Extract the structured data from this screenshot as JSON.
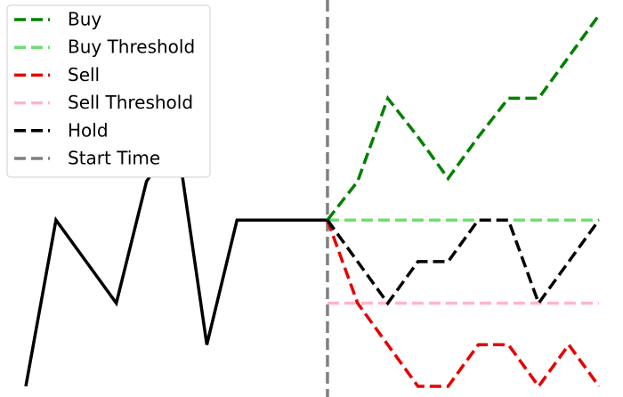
{
  "chart_data": {
    "type": "line",
    "grid": false,
    "legend_position": "top-left",
    "xlim": [
      -0.5,
      19.5
    ],
    "ylim": [
      -0.2,
      13.0
    ],
    "start_time": 10,
    "series": [
      {
        "name": "Hold",
        "role": "history",
        "color": "#000000",
        "style": "solid",
        "x": [
          0,
          1,
          2,
          3,
          4,
          5,
          6,
          7,
          8,
          9,
          10
        ],
        "y": [
          0.0,
          5.6,
          4.2,
          2.8,
          6.9,
          8.4,
          1.4,
          5.6,
          5.6,
          5.6,
          5.6
        ]
      },
      {
        "name": "Buy",
        "color": "#008000",
        "style": "dashed",
        "x": [
          10,
          11,
          12,
          13,
          14,
          15,
          16,
          17,
          18,
          19
        ],
        "y": [
          5.6,
          6.9,
          9.7,
          8.4,
          7.0,
          8.4,
          9.7,
          9.7,
          11.1,
          12.5
        ]
      },
      {
        "name": "Buy Threshold",
        "color": "#6ee06e",
        "style": "dashed",
        "x": [
          10,
          19
        ],
        "y": [
          5.6,
          5.6
        ]
      },
      {
        "name": "Sell",
        "color": "#e60000",
        "style": "dashed",
        "x": [
          10,
          11,
          12,
          13,
          14,
          15,
          16,
          17,
          18,
          19
        ],
        "y": [
          5.6,
          2.8,
          1.4,
          0.0,
          0.0,
          1.4,
          1.4,
          0.0,
          1.4,
          0.0
        ]
      },
      {
        "name": "Sell Threshold",
        "color": "#ffb6c8",
        "style": "dashed",
        "x": [
          10,
          19
        ],
        "y": [
          2.8,
          2.8
        ]
      },
      {
        "name": "Hold",
        "color": "#000000",
        "style": "dashed",
        "x": [
          10,
          11,
          12,
          13,
          14,
          15,
          16,
          17,
          18,
          19
        ],
        "y": [
          5.6,
          4.2,
          2.8,
          4.2,
          4.2,
          5.6,
          5.6,
          2.8,
          4.2,
          5.6
        ]
      }
    ],
    "start_time_line": {
      "name": "Start Time",
      "color": "#808080",
      "style": "dashed",
      "x": 10
    },
    "legend": [
      {
        "label": "Buy",
        "color": "#008000"
      },
      {
        "label": "Buy Threshold",
        "color": "#6ee06e"
      },
      {
        "label": "Sell",
        "color": "#e60000"
      },
      {
        "label": "Sell Threshold",
        "color": "#ffb6c8"
      },
      {
        "label": "Hold",
        "color": "#000000"
      },
      {
        "label": "Start Time",
        "color": "#808080"
      }
    ]
  }
}
